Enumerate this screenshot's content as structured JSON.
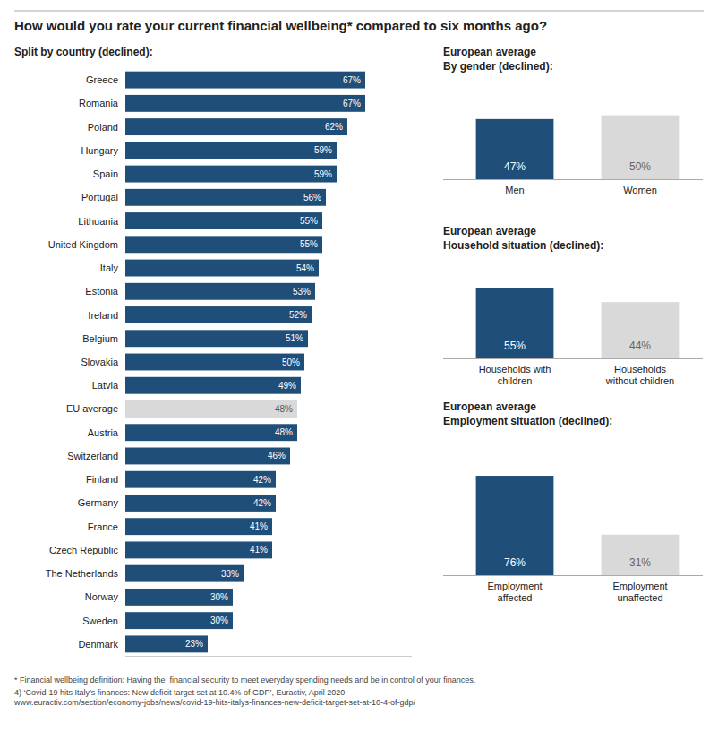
{
  "chart_data": [
    {
      "type": "bar",
      "orientation": "horizontal",
      "title": "How would you rate your current financial wellbeing* compared to six months ago?",
      "subtitle": "Split by country (declined):",
      "categories": [
        "Greece",
        "Romania",
        "Poland",
        "Hungary",
        "Spain",
        "Portugal",
        "Lithuania",
        "United Kingdom",
        "Italy",
        "Estonia",
        "Ireland",
        "Belgium",
        "Slovakia",
        "Latvia",
        "EU average",
        "Austria",
        "Switzerland",
        "Finland",
        "Germany",
        "France",
        "Czech Republic",
        "The Netherlands",
        "Norway",
        "Sweden",
        "Denmark"
      ],
      "values": [
        67,
        67,
        62,
        59,
        59,
        56,
        55,
        55,
        54,
        53,
        52,
        51,
        50,
        49,
        48,
        48,
        46,
        42,
        42,
        41,
        41,
        33,
        30,
        30,
        23
      ],
      "value_labels": [
        "67%",
        "67%",
        "62%",
        "59%",
        "59%",
        "56%",
        "55%",
        "55%",
        "54%",
        "53%",
        "52%",
        "51%",
        "50%",
        "49%",
        "48%",
        "48%",
        "46%",
        "42%",
        "42%",
        "41%",
        "41%",
        "33%",
        "30%",
        "30%",
        "23%"
      ],
      "colors": [
        "#1f4e79",
        "#1f4e79",
        "#1f4e79",
        "#1f4e79",
        "#1f4e79",
        "#1f4e79",
        "#1f4e79",
        "#1f4e79",
        "#1f4e79",
        "#1f4e79",
        "#1f4e79",
        "#1f4e79",
        "#1f4e79",
        "#1f4e79",
        "#d9d9d9",
        "#1f4e79",
        "#1f4e79",
        "#1f4e79",
        "#1f4e79",
        "#1f4e79",
        "#1f4e79",
        "#1f4e79",
        "#1f4e79",
        "#1f4e79",
        "#1f4e79"
      ],
      "xlim": [
        0,
        80
      ],
      "data_labels": true,
      "tick_labels": "y",
      "grid": false,
      "annotations": [
        "* Financial wellbeing definition: Having the  financial security to meet everyday spending needs and be in control of your finances.",
        "4) ‘Covid-19 hits Italy’s finances: New deficit target set at 10.4% of GDP’, Euractiv, April 2020 www.euractiv.com/section/economy-jobs/news/covid-19-hits-italys-finances-new-deficit-target-set-at-10-4-of-gdp/"
      ]
    },
    {
      "type": "bar",
      "title": "European average",
      "subtitle": "By gender (declined):",
      "categories": [
        "Men",
        "Women"
      ],
      "values": [
        47,
        50
      ],
      "value_labels": [
        "47%",
        "50%"
      ],
      "colors": [
        "#1f4e79",
        "#d9d9d9"
      ],
      "ylim": [
        0,
        70
      ],
      "data_labels": true,
      "tick_labels": "x",
      "grid": false
    },
    {
      "type": "bar",
      "title": "European average",
      "subtitle": "Household situation (declined):",
      "categories": [
        "Households with\nchildren",
        "Households\nwithout children"
      ],
      "values": [
        55,
        44
      ],
      "value_labels": [
        "55%",
        "44%"
      ],
      "colors": [
        "#1f4e79",
        "#d9d9d9"
      ],
      "ylim": [
        0,
        70
      ],
      "data_labels": true,
      "tick_labels": "x",
      "grid": false
    },
    {
      "type": "bar",
      "title": "European average",
      "subtitle": "Employment situation (declined):",
      "categories": [
        "Employment\naffected",
        "Employment\nunaffected"
      ],
      "values": [
        76,
        31
      ],
      "value_labels": [
        "76%",
        "31%"
      ],
      "colors": [
        "#1f4e79",
        "#d9d9d9"
      ],
      "ylim": [
        0,
        100
      ],
      "data_labels": true,
      "tick_labels": "x",
      "grid": false
    }
  ]
}
